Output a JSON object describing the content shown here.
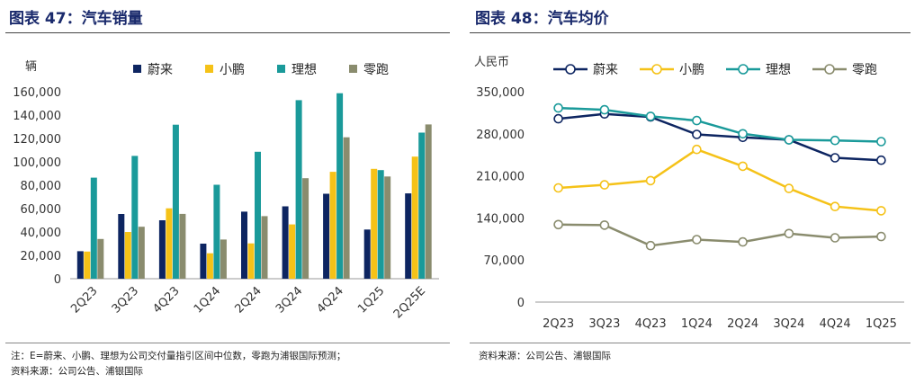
{
  "left": {
    "title": "图表 47：汽车销量",
    "note_lines": [
      "注：E=蔚来、小鹏、理想为公司交付量指引区间中位数，零跑为浦银国际预测；",
      "资料来源：公司公告、浦银国际"
    ]
  },
  "right": {
    "title": "图表 48：汽车均价",
    "note_lines": [
      "资料来源：公司公告、浦银国际"
    ]
  },
  "chart_data": [
    {
      "type": "bar",
      "ylabel": "辆",
      "ylim": [
        0,
        160000
      ],
      "yticks": [
        "0",
        "20,000",
        "40,000",
        "60,000",
        "80,000",
        "100,000",
        "120,000",
        "140,000",
        "160,000"
      ],
      "categories": [
        "2Q23",
        "3Q23",
        "4Q23",
        "1Q24",
        "2Q24",
        "3Q24",
        "4Q24",
        "1Q25",
        "2Q25E"
      ],
      "legend_position": "top",
      "series": [
        {
          "name": "蔚来",
          "color": "#0d2561",
          "values": [
            23500,
            55400,
            50000,
            30000,
            57400,
            61900,
            72700,
            42100,
            73000
          ]
        },
        {
          "name": "小鹏",
          "color": "#f5c218",
          "values": [
            23200,
            40000,
            60200,
            21800,
            30200,
            46500,
            91500,
            94000,
            104500
          ]
        },
        {
          "name": "理想",
          "color": "#1a9a9a",
          "values": [
            86500,
            105100,
            131800,
            80400,
            108600,
            152800,
            158700,
            92900,
            125000
          ]
        },
        {
          "name": "零跑",
          "color": "#8a8c6e",
          "values": [
            34000,
            44500,
            55500,
            33500,
            53500,
            86000,
            121000,
            87500,
            132000
          ]
        }
      ]
    },
    {
      "type": "line",
      "ylabel": "人民币",
      "ylim": [
        0,
        350000
      ],
      "yticks": [
        "0",
        "70,000",
        "140,000",
        "210,000",
        "280,000",
        "350,000"
      ],
      "categories": [
        "2Q23",
        "3Q23",
        "4Q23",
        "1Q24",
        "2Q24",
        "3Q24",
        "4Q24",
        "1Q25"
      ],
      "legend_position": "top",
      "series": [
        {
          "name": "蔚来",
          "color": "#0d2561",
          "values": [
            305000,
            313000,
            308000,
            279000,
            274000,
            270000,
            240000,
            236000
          ]
        },
        {
          "name": "小鹏",
          "color": "#f5c218",
          "values": [
            190000,
            195000,
            202000,
            254000,
            226000,
            189000,
            159000,
            152000
          ]
        },
        {
          "name": "理想",
          "color": "#1a9a9a",
          "values": [
            323000,
            320000,
            309000,
            302000,
            280000,
            270000,
            269000,
            267000
          ]
        },
        {
          "name": "零跑",
          "color": "#8a8c6e",
          "values": [
            129000,
            128000,
            94000,
            104000,
            100000,
            114000,
            107000,
            109000
          ]
        }
      ]
    }
  ]
}
